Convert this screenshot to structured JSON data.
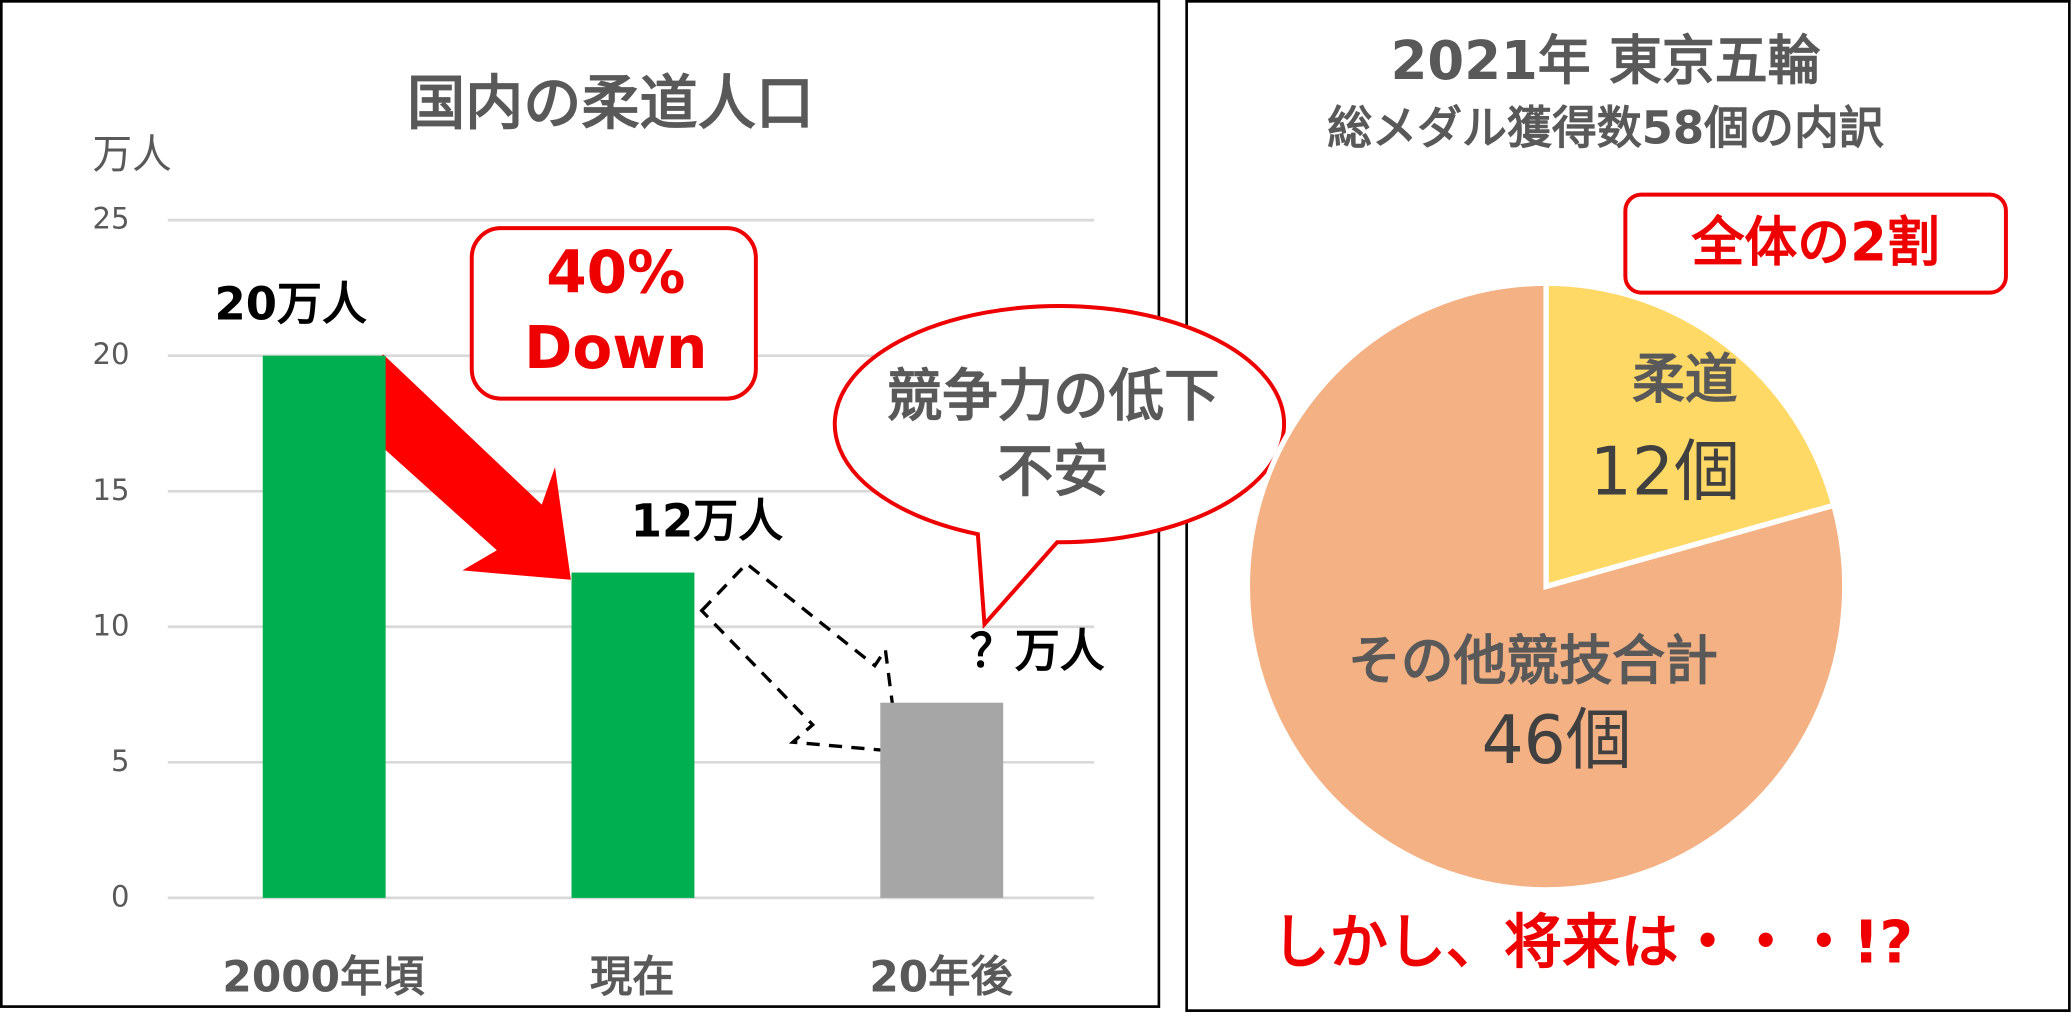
{
  "chart_data": [
    {
      "type": "bar",
      "title": "国内の柔道人口",
      "y_label": "万人",
      "categories": [
        "2000年頃",
        "現在",
        "20年後"
      ],
      "values": [
        20,
        12,
        7.2
      ],
      "value_labels": [
        "20万人",
        "12万人",
        "？万人"
      ],
      "colors": [
        "#00b050",
        "#00b050",
        "#a6a6a6"
      ],
      "ylim": [
        0,
        25
      ],
      "yticks": [
        0,
        5,
        10,
        15,
        20,
        25
      ],
      "grid": true,
      "annotations": [
        "40%",
        "Down",
        "競争力の低下",
        "不安"
      ]
    },
    {
      "type": "pie",
      "title": [
        "2021年 東京五輪",
        "総メダル獲得数58個の内訳"
      ],
      "categories": [
        "柔道",
        "その他競技合計"
      ],
      "values": [
        12,
        46
      ],
      "value_labels": [
        "12個",
        "46個"
      ],
      "colors": [
        "#ffd966",
        "#f4b183"
      ],
      "annotations": [
        "全体の2割",
        "しかし、将来は・・・!?"
      ]
    }
  ]
}
